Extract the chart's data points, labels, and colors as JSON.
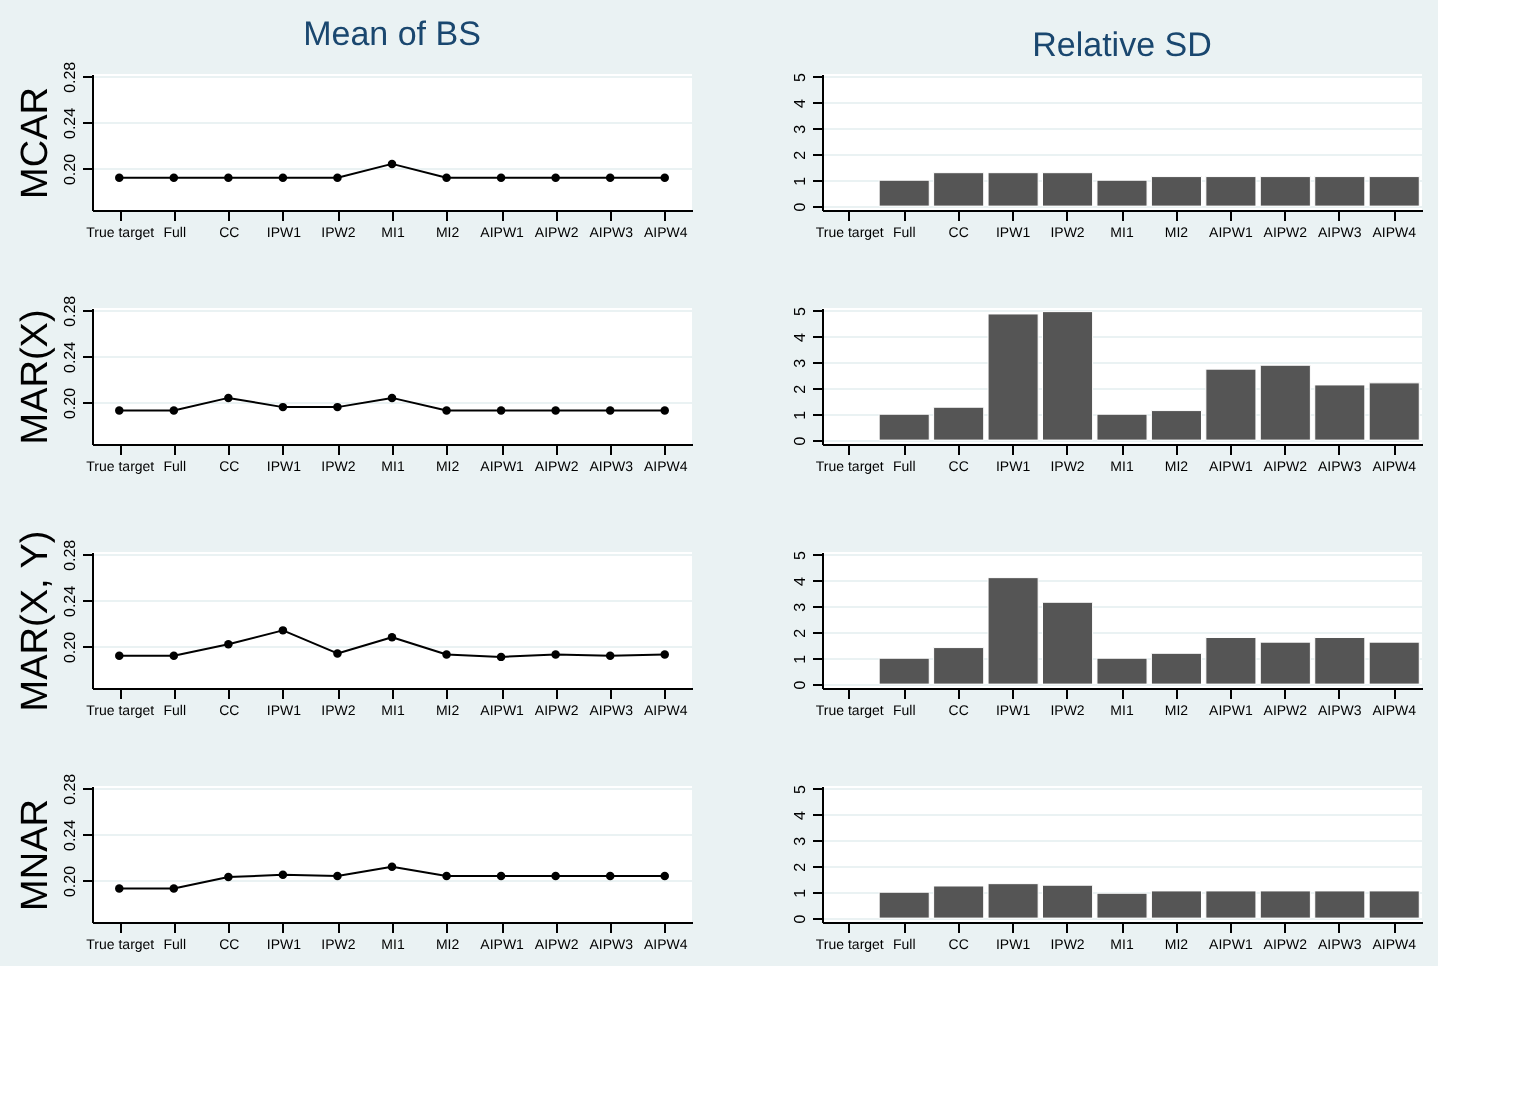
{
  "chart_data": [
    {
      "type": "line",
      "title": "Mean of BS",
      "ylabel": "MCAR",
      "categories": [
        "True target",
        "Full",
        "CC",
        "IPW1",
        "IPW2",
        "MI1",
        "MI2",
        "AIPW1",
        "AIPW2",
        "AIPW3",
        "AIPW4"
      ],
      "series": [
        {
          "color": "#000000",
          "values": [
            0.192,
            0.192,
            0.192,
            0.192,
            0.192,
            0.204,
            0.192,
            0.192,
            0.192,
            0.192,
            0.192
          ]
        }
      ],
      "ylim": [
        0.164,
        0.282
      ],
      "yticks": [
        {
          "value": 0.2,
          "label": "0.20"
        },
        {
          "value": 0.24,
          "label": "0.24"
        },
        {
          "value": 0.28,
          "label": "0.28"
        }
      ],
      "grid": "y",
      "marker": "circle",
      "line_style": "solid"
    },
    {
      "type": "bar",
      "title": "Relative SD",
      "categories": [
        "True target",
        "Full",
        "CC",
        "IPW1",
        "IPW2",
        "MI1",
        "MI2",
        "AIPW1",
        "AIPW2",
        "AIPW3",
        "AIPW4"
      ],
      "series": [
        {
          "color": "#555555",
          "values": [
            null,
            1.0,
            1.29,
            1.29,
            1.29,
            1.0,
            1.14,
            1.14,
            1.14,
            1.14,
            1.14
          ]
        }
      ],
      "ylim": [
        -0.15,
        5.1
      ],
      "yticks": [
        0,
        1,
        2,
        3,
        4,
        5
      ],
      "grid": "y"
    },
    {
      "type": "line",
      "ylabel": "MAR(X)",
      "categories": [
        "True target",
        "Full",
        "CC",
        "IPW1",
        "IPW2",
        "MI1",
        "MI2",
        "AIPW1",
        "AIPW2",
        "AIPW3",
        "AIPW4"
      ],
      "series": [
        {
          "color": "#000000",
          "values": [
            0.193,
            0.193,
            0.204,
            0.196,
            0.196,
            0.204,
            0.193,
            0.193,
            0.193,
            0.193,
            0.193
          ]
        }
      ],
      "ylim": [
        0.164,
        0.282
      ],
      "yticks": [
        {
          "value": 0.2,
          "label": "0.20"
        },
        {
          "value": 0.24,
          "label": "0.24"
        },
        {
          "value": 0.28,
          "label": "0.28"
        }
      ],
      "grid": "y",
      "marker": "circle",
      "line_style": "solid"
    },
    {
      "type": "bar",
      "categories": [
        "True target",
        "Full",
        "CC",
        "IPW1",
        "IPW2",
        "MI1",
        "MI2",
        "AIPW1",
        "AIPW2",
        "AIPW3",
        "AIPW4"
      ],
      "series": [
        {
          "color": "#555555",
          "values": [
            null,
            1.0,
            1.27,
            4.87,
            4.96,
            1.0,
            1.14,
            2.74,
            2.89,
            2.13,
            2.21
          ]
        }
      ],
      "ylim": [
        -0.15,
        5.1
      ],
      "yticks": [
        0,
        1,
        2,
        3,
        4,
        5
      ],
      "grid": "y"
    },
    {
      "type": "line",
      "ylabel": "MAR(X, Y)",
      "categories": [
        "True target",
        "Full",
        "CC",
        "IPW1",
        "IPW2",
        "MI1",
        "MI2",
        "AIPW1",
        "AIPW2",
        "AIPW3",
        "AIPW4"
      ],
      "series": [
        {
          "color": "#000000",
          "values": [
            0.192,
            0.192,
            0.202,
            0.214,
            0.194,
            0.208,
            0.193,
            0.191,
            0.193,
            0.192,
            0.193
          ]
        }
      ],
      "ylim": [
        0.164,
        0.282
      ],
      "yticks": [
        {
          "value": 0.2,
          "label": "0.20"
        },
        {
          "value": 0.24,
          "label": "0.24"
        },
        {
          "value": 0.28,
          "label": "0.28"
        }
      ],
      "grid": "y",
      "marker": "circle",
      "line_style": "solid"
    },
    {
      "type": "bar",
      "categories": [
        "True target",
        "Full",
        "CC",
        "IPW1",
        "IPW2",
        "MI1",
        "MI2",
        "AIPW1",
        "AIPW2",
        "AIPW3",
        "AIPW4"
      ],
      "series": [
        {
          "color": "#555555",
          "values": [
            null,
            1.0,
            1.41,
            4.11,
            3.16,
            1.0,
            1.19,
            1.8,
            1.62,
            1.8,
            1.62
          ]
        }
      ],
      "ylim": [
        -0.15,
        5.1
      ],
      "yticks": [
        0,
        1,
        2,
        3,
        4,
        5
      ],
      "grid": "y"
    },
    {
      "type": "line",
      "ylabel": "MNAR",
      "categories": [
        "True target",
        "Full",
        "CC",
        "IPW1",
        "IPW2",
        "MI1",
        "MI2",
        "AIPW1",
        "AIPW2",
        "AIPW3",
        "AIPW4"
      ],
      "series": [
        {
          "color": "#000000",
          "values": [
            0.193,
            0.193,
            0.203,
            0.205,
            0.204,
            0.212,
            0.204,
            0.204,
            0.204,
            0.204,
            0.204
          ]
        }
      ],
      "ylim": [
        0.164,
        0.282
      ],
      "yticks": [
        {
          "value": 0.2,
          "label": "0.20"
        },
        {
          "value": 0.24,
          "label": "0.24"
        },
        {
          "value": 0.28,
          "label": "0.28"
        }
      ],
      "grid": "y",
      "marker": "circle",
      "line_style": "solid"
    },
    {
      "type": "bar",
      "categories": [
        "True target",
        "Full",
        "CC",
        "IPW1",
        "IPW2",
        "MI1",
        "MI2",
        "AIPW1",
        "AIPW2",
        "AIPW3",
        "AIPW4"
      ],
      "series": [
        {
          "color": "#555555",
          "values": [
            null,
            1.0,
            1.24,
            1.33,
            1.27,
            0.96,
            1.05,
            1.05,
            1.05,
            1.05,
            1.05
          ]
        }
      ],
      "ylim": [
        -0.15,
        5.1
      ],
      "yticks": [
        0,
        1,
        2,
        3,
        4,
        5
      ],
      "grid": "y"
    }
  ]
}
